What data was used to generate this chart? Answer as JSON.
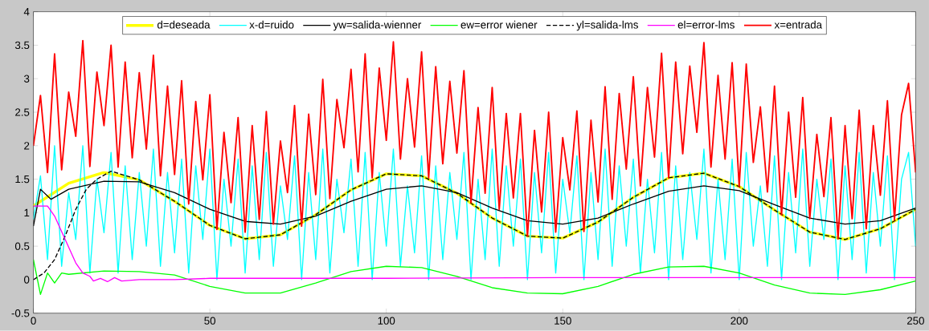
{
  "chart_data": {
    "type": "line",
    "xlim": [
      0,
      250
    ],
    "ylim": [
      -0.5,
      4
    ],
    "xticks": [
      0,
      50,
      100,
      150,
      200,
      250
    ],
    "yticks": [
      -0.5,
      0,
      0.5,
      1,
      1.5,
      2,
      2.5,
      3,
      3.5,
      4
    ],
    "legend": "top",
    "x": [
      0,
      2,
      4,
      6,
      8,
      10,
      12,
      14,
      16,
      18,
      20,
      22,
      24,
      26,
      28,
      30,
      32,
      34,
      36,
      38,
      40,
      42,
      44,
      46,
      48,
      50,
      52,
      54,
      56,
      58,
      60,
      62,
      64,
      66,
      68,
      70,
      72,
      74,
      76,
      78,
      80,
      82,
      84,
      86,
      88,
      90,
      92,
      94,
      96,
      98,
      100,
      102,
      104,
      106,
      108,
      110,
      112,
      114,
      116,
      118,
      120,
      122,
      124,
      126,
      128,
      130,
      132,
      134,
      136,
      138,
      140,
      142,
      144,
      146,
      148,
      150,
      152,
      154,
      156,
      158,
      160,
      162,
      164,
      166,
      168,
      170,
      172,
      174,
      176,
      178,
      180,
      182,
      184,
      186,
      188,
      190,
      192,
      194,
      196,
      198,
      200,
      202,
      204,
      206,
      208,
      210,
      212,
      214,
      216,
      218,
      220,
      222,
      224,
      226,
      228,
      230,
      232,
      234,
      236,
      238,
      240,
      242,
      244,
      246,
      248,
      250
    ],
    "series": [
      {
        "name": "d=deseada",
        "color": "#ffff00",
        "x": [
          0,
          10,
          20,
          30,
          40,
          50,
          60,
          70,
          80,
          90,
          100,
          110,
          120,
          130,
          140,
          150,
          160,
          170,
          180,
          190,
          200,
          210,
          220,
          230,
          240,
          250
        ],
        "values": [
          1.1,
          1.44,
          1.6,
          1.49,
          1.17,
          0.81,
          0.61,
          0.67,
          0.97,
          1.34,
          1.58,
          1.55,
          1.29,
          0.92,
          0.65,
          0.62,
          0.86,
          1.23,
          1.52,
          1.59,
          1.39,
          1.04,
          0.71,
          0.6,
          0.76,
          1.05
        ]
      },
      {
        "name": "x-d=ruido",
        "color": "#00ffff",
        "values": [
          0.9,
          1.55,
          0.3,
          2.0,
          0.2,
          1.3,
          0.6,
          2.0,
          0.1,
          1.5,
          0.7,
          1.9,
          0.1,
          1.7,
          0.3,
          1.6,
          0.5,
          1.95,
          0.2,
          1.6,
          0.4,
          1.8,
          0.1,
          1.7,
          0.6,
          1.95,
          0.0,
          1.5,
          0.5,
          1.8,
          0.1,
          1.7,
          0.3,
          1.9,
          0.2,
          1.4,
          0.6,
          1.85,
          0.0,
          1.6,
          0.3,
          1.95,
          0.1,
          1.5,
          0.7,
          1.8,
          0.2,
          1.9,
          0.0,
          1.6,
          0.5,
          1.95,
          0.2,
          1.4,
          0.4,
          1.85,
          0.0,
          1.7,
          0.3,
          1.6,
          0.6,
          1.9,
          0.0,
          1.5,
          0.3,
          1.95,
          0.2,
          1.7,
          0.5,
          1.8,
          0.0,
          1.6,
          0.4,
          1.9,
          0.1,
          1.5,
          0.7,
          1.85,
          0.0,
          1.6,
          0.3,
          1.95,
          0.2,
          1.7,
          0.5,
          1.8,
          0.1,
          1.5,
          0.4,
          1.9,
          0.0,
          1.7,
          0.3,
          1.6,
          0.6,
          1.95,
          0.1,
          1.5,
          0.3,
          1.8,
          0.0,
          1.9,
          0.5,
          1.4,
          0.2,
          1.85,
          0.0,
          1.6,
          0.4,
          1.95,
          0.2,
          1.5,
          0.6,
          1.8,
          0.0,
          1.7,
          0.3,
          1.9,
          0.1,
          1.6,
          0.5,
          1.85,
          0.0,
          1.5,
          1.9,
          0.5
        ]
      },
      {
        "name": "yw=salida-wienner",
        "color": "#000000",
        "x": [
          0,
          2,
          5,
          10,
          20,
          30,
          40,
          50,
          60,
          70,
          80,
          90,
          100,
          110,
          120,
          130,
          140,
          150,
          160,
          170,
          180,
          190,
          200,
          210,
          220,
          230,
          240,
          250
        ],
        "values": [
          0.8,
          1.35,
          1.2,
          1.35,
          1.47,
          1.46,
          1.3,
          1.05,
          0.87,
          0.83,
          0.95,
          1.17,
          1.35,
          1.4,
          1.3,
          1.07,
          0.88,
          0.83,
          0.92,
          1.13,
          1.32,
          1.4,
          1.33,
          1.12,
          0.92,
          0.83,
          0.88,
          1.07
        ]
      },
      {
        "name": "ew=error wiener",
        "color": "#00ff00",
        "x": [
          0,
          2,
          4,
          6,
          8,
          10,
          20,
          30,
          40,
          50,
          60,
          70,
          80,
          90,
          100,
          110,
          120,
          130,
          140,
          150,
          160,
          170,
          180,
          190,
          200,
          210,
          220,
          230,
          240,
          250
        ],
        "values": [
          0.3,
          -0.22,
          0.1,
          -0.05,
          0.1,
          0.08,
          0.13,
          0.12,
          0.07,
          -0.1,
          -0.2,
          -0.2,
          -0.05,
          0.12,
          0.2,
          0.18,
          0.05,
          -0.12,
          -0.2,
          -0.21,
          -0.1,
          0.08,
          0.19,
          0.2,
          0.1,
          -0.08,
          -0.2,
          -0.22,
          -0.15,
          -0.02
        ]
      },
      {
        "name": "yl=salida-lms",
        "color": "#000000",
        "line_style": "dashed",
        "x": [
          0,
          3,
          6,
          9,
          12,
          15,
          18,
          22,
          30,
          40,
          50,
          60,
          70,
          80,
          90,
          100,
          110,
          120,
          130,
          140,
          150,
          160,
          170,
          180,
          190,
          200,
          210,
          220,
          230,
          240,
          250
        ],
        "values": [
          0,
          0.1,
          0.3,
          0.65,
          1.05,
          1.35,
          1.5,
          1.62,
          1.49,
          1.17,
          0.81,
          0.61,
          0.67,
          0.97,
          1.34,
          1.58,
          1.55,
          1.29,
          0.92,
          0.65,
          0.62,
          0.86,
          1.23,
          1.52,
          1.59,
          1.39,
          1.04,
          0.71,
          0.6,
          0.76,
          1.05
        ]
      },
      {
        "name": "el=error-lms",
        "color": "#ff00ff",
        "x": [
          0,
          4,
          6,
          9,
          12,
          14,
          16,
          17,
          19,
          21,
          23,
          25,
          30,
          40,
          50,
          100,
          150,
          250
        ],
        "values": [
          1.1,
          1.1,
          0.95,
          0.6,
          0.25,
          0.1,
          0.05,
          -0.02,
          0.02,
          -0.03,
          0.03,
          -0.02,
          0.0,
          0.0,
          0.02,
          0.02,
          0.03,
          0.03
        ]
      },
      {
        "name": "x=entrada",
        "color": "#ff0000",
        "values": [
          2.0,
          2.75,
          1.6,
          3.37,
          1.64,
          2.8,
          2.14,
          3.57,
          1.69,
          3.1,
          2.3,
          3.5,
          1.68,
          3.25,
          1.82,
          3.09,
          1.95,
          3.35,
          1.55,
          2.89,
          1.57,
          2.97,
          1.13,
          2.66,
          1.49,
          2.76,
          0.75,
          2.2,
          1.15,
          2.42,
          0.71,
          2.3,
          0.9,
          2.51,
          0.83,
          2.07,
          1.3,
          2.6,
          0.8,
          2.47,
          1.27,
          2.99,
          1.21,
          2.69,
          1.97,
          3.14,
          1.61,
          3.37,
          1.52,
          3.16,
          2.08,
          3.55,
          1.8,
          3.0,
          1.98,
          3.4,
          1.52,
          3.18,
          1.73,
          2.96,
          1.89,
          3.12,
          1.15,
          2.57,
          1.29,
          2.87,
          1.05,
          2.48,
          1.22,
          2.48,
          0.65,
          2.23,
          1.01,
          2.5,
          0.71,
          2.12,
          1.34,
          2.52,
          0.72,
          2.38,
          1.16,
          2.88,
          1.2,
          2.78,
          1.65,
          3.03,
          1.4,
          2.87,
          1.83,
          3.38,
          1.52,
          3.25,
          1.88,
          3.19,
          2.2,
          3.54,
          1.68,
          3.05,
          1.8,
          3.24,
          1.39,
          3.22,
          1.75,
          2.58,
          1.31,
          2.89,
          0.97,
          2.5,
          1.23,
          2.72,
          0.91,
          2.17,
          1.24,
          2.42,
          0.61,
          2.3,
          0.91,
          2.53,
          0.76,
          2.3,
          1.26,
          2.67,
          0.89,
          2.46,
          2.93,
          1.6
        ]
      }
    ]
  }
}
